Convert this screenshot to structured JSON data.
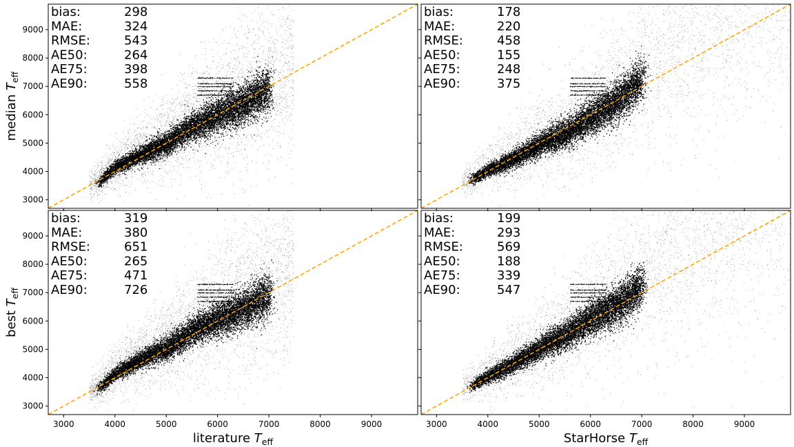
{
  "chart_data": {
    "type": "scatter",
    "layout": "2x2 grid, shared axes",
    "xlim": [
      2700,
      9900
    ],
    "ylim": [
      2700,
      9900
    ],
    "xticks": [
      3000,
      4000,
      5000,
      6000,
      7000,
      8000,
      9000
    ],
    "yticks": [
      3000,
      4000,
      5000,
      6000,
      7000,
      8000,
      9000
    ],
    "grid": false,
    "reference_line": {
      "style": "dashed",
      "color": "#ffa500",
      "relation": "y = x"
    },
    "point_color": "#000000",
    "stat_labels": [
      "bias:",
      "MAE:",
      "RMSE:",
      "AE50:",
      "AE75:",
      "AE90:"
    ],
    "y_axis_titles": [
      {
        "prefix": "median ",
        "var": "T",
        "sub": "eff"
      },
      {
        "prefix": "best ",
        "var": "T",
        "sub": "eff"
      }
    ],
    "x_axis_titles": [
      {
        "prefix": "literature ",
        "var": "T",
        "sub": "eff"
      },
      {
        "prefix": "StarHorse ",
        "var": "T",
        "sub": "eff"
      }
    ],
    "panels": [
      {
        "row": 0,
        "col": 0,
        "stats": [
          "298",
          "324",
          "543",
          "264",
          "398",
          "558"
        ],
        "dense_ridge": [
          [
            3700,
            3650
          ],
          [
            4000,
            4150
          ],
          [
            4500,
            4600
          ],
          [
            5000,
            5000
          ],
          [
            5500,
            5600
          ],
          [
            6000,
            6000
          ],
          [
            6500,
            6400
          ],
          [
            7000,
            6900
          ]
        ],
        "x_cutoff": 7480
      },
      {
        "row": 0,
        "col": 1,
        "stats": [
          "178",
          "220",
          "458",
          "155",
          "248",
          "375"
        ],
        "dense_ridge": [
          [
            3500,
            3550
          ],
          [
            4000,
            4050
          ],
          [
            4500,
            4450
          ],
          [
            5000,
            4950
          ],
          [
            5500,
            5350
          ],
          [
            6000,
            5900
          ],
          [
            6500,
            6450
          ],
          [
            7000,
            7300
          ]
        ],
        "x_cutoff": null
      },
      {
        "row": 1,
        "col": 0,
        "stats": [
          "319",
          "380",
          "651",
          "265",
          "471",
          "726"
        ],
        "dense_ridge": [
          [
            3700,
            3650
          ],
          [
            4000,
            4150
          ],
          [
            4500,
            4650
          ],
          [
            5000,
            5050
          ],
          [
            5500,
            5650
          ],
          [
            6000,
            6050
          ],
          [
            6500,
            6450
          ],
          [
            7000,
            6900
          ]
        ],
        "x_cutoff": 7480
      },
      {
        "row": 1,
        "col": 1,
        "stats": [
          "199",
          "293",
          "569",
          "188",
          "339",
          "547"
        ],
        "dense_ridge": [
          [
            3500,
            3550
          ],
          [
            4000,
            4050
          ],
          [
            4500,
            4500
          ],
          [
            5000,
            5050
          ],
          [
            5500,
            5500
          ],
          [
            6000,
            6100
          ],
          [
            6500,
            6550
          ],
          [
            7000,
            7250
          ]
        ],
        "x_cutoff": null
      }
    ]
  }
}
